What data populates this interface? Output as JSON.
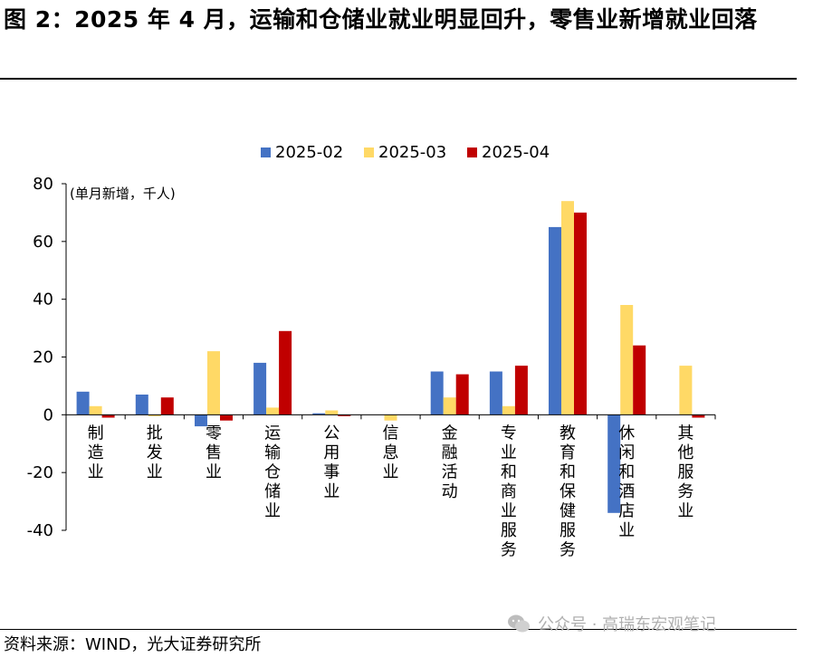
{
  "title": "图 2：2025 年 4 月，运输和仓储业就业明显回升，零售业新增就业回落",
  "source": "资料来源：WIND，光大证券研究所",
  "watermark": "公众号 · 高瑞东宏观笔记",
  "watermark_icon": "wechat-icon",
  "colors": {
    "2025-02": "#4472C4",
    "2025-03": "#FFD966",
    "2025-04": "#C00000",
    "axis": "#000000"
  },
  "chart_data": {
    "type": "bar",
    "unit_label": "(单月新增，千人)",
    "legend_position": "top-center",
    "grid": false,
    "ylim": [
      -40,
      80
    ],
    "yticks": [
      80,
      60,
      40,
      20,
      0,
      -20,
      -40
    ],
    "categories": [
      "制造业",
      "批发业",
      "零售业",
      "运输仓储业",
      "公用事业",
      "信息业",
      "金融活动",
      "专业和商业服务",
      "教育和保健服务",
      "休闲和酒店业",
      "其他服务业"
    ],
    "series": [
      {
        "name": "2025-02",
        "values": [
          8,
          7,
          -4,
          18,
          0.5,
          0,
          15,
          15,
          65,
          -34,
          0
        ]
      },
      {
        "name": "2025-03",
        "values": [
          3,
          -0.5,
          22,
          2.5,
          1.5,
          -2,
          6,
          3,
          74,
          38,
          17
        ]
      },
      {
        "name": "2025-04",
        "values": [
          -1,
          6,
          -2,
          29,
          -0.5,
          0,
          14,
          17,
          70,
          24,
          -1
        ]
      }
    ]
  }
}
